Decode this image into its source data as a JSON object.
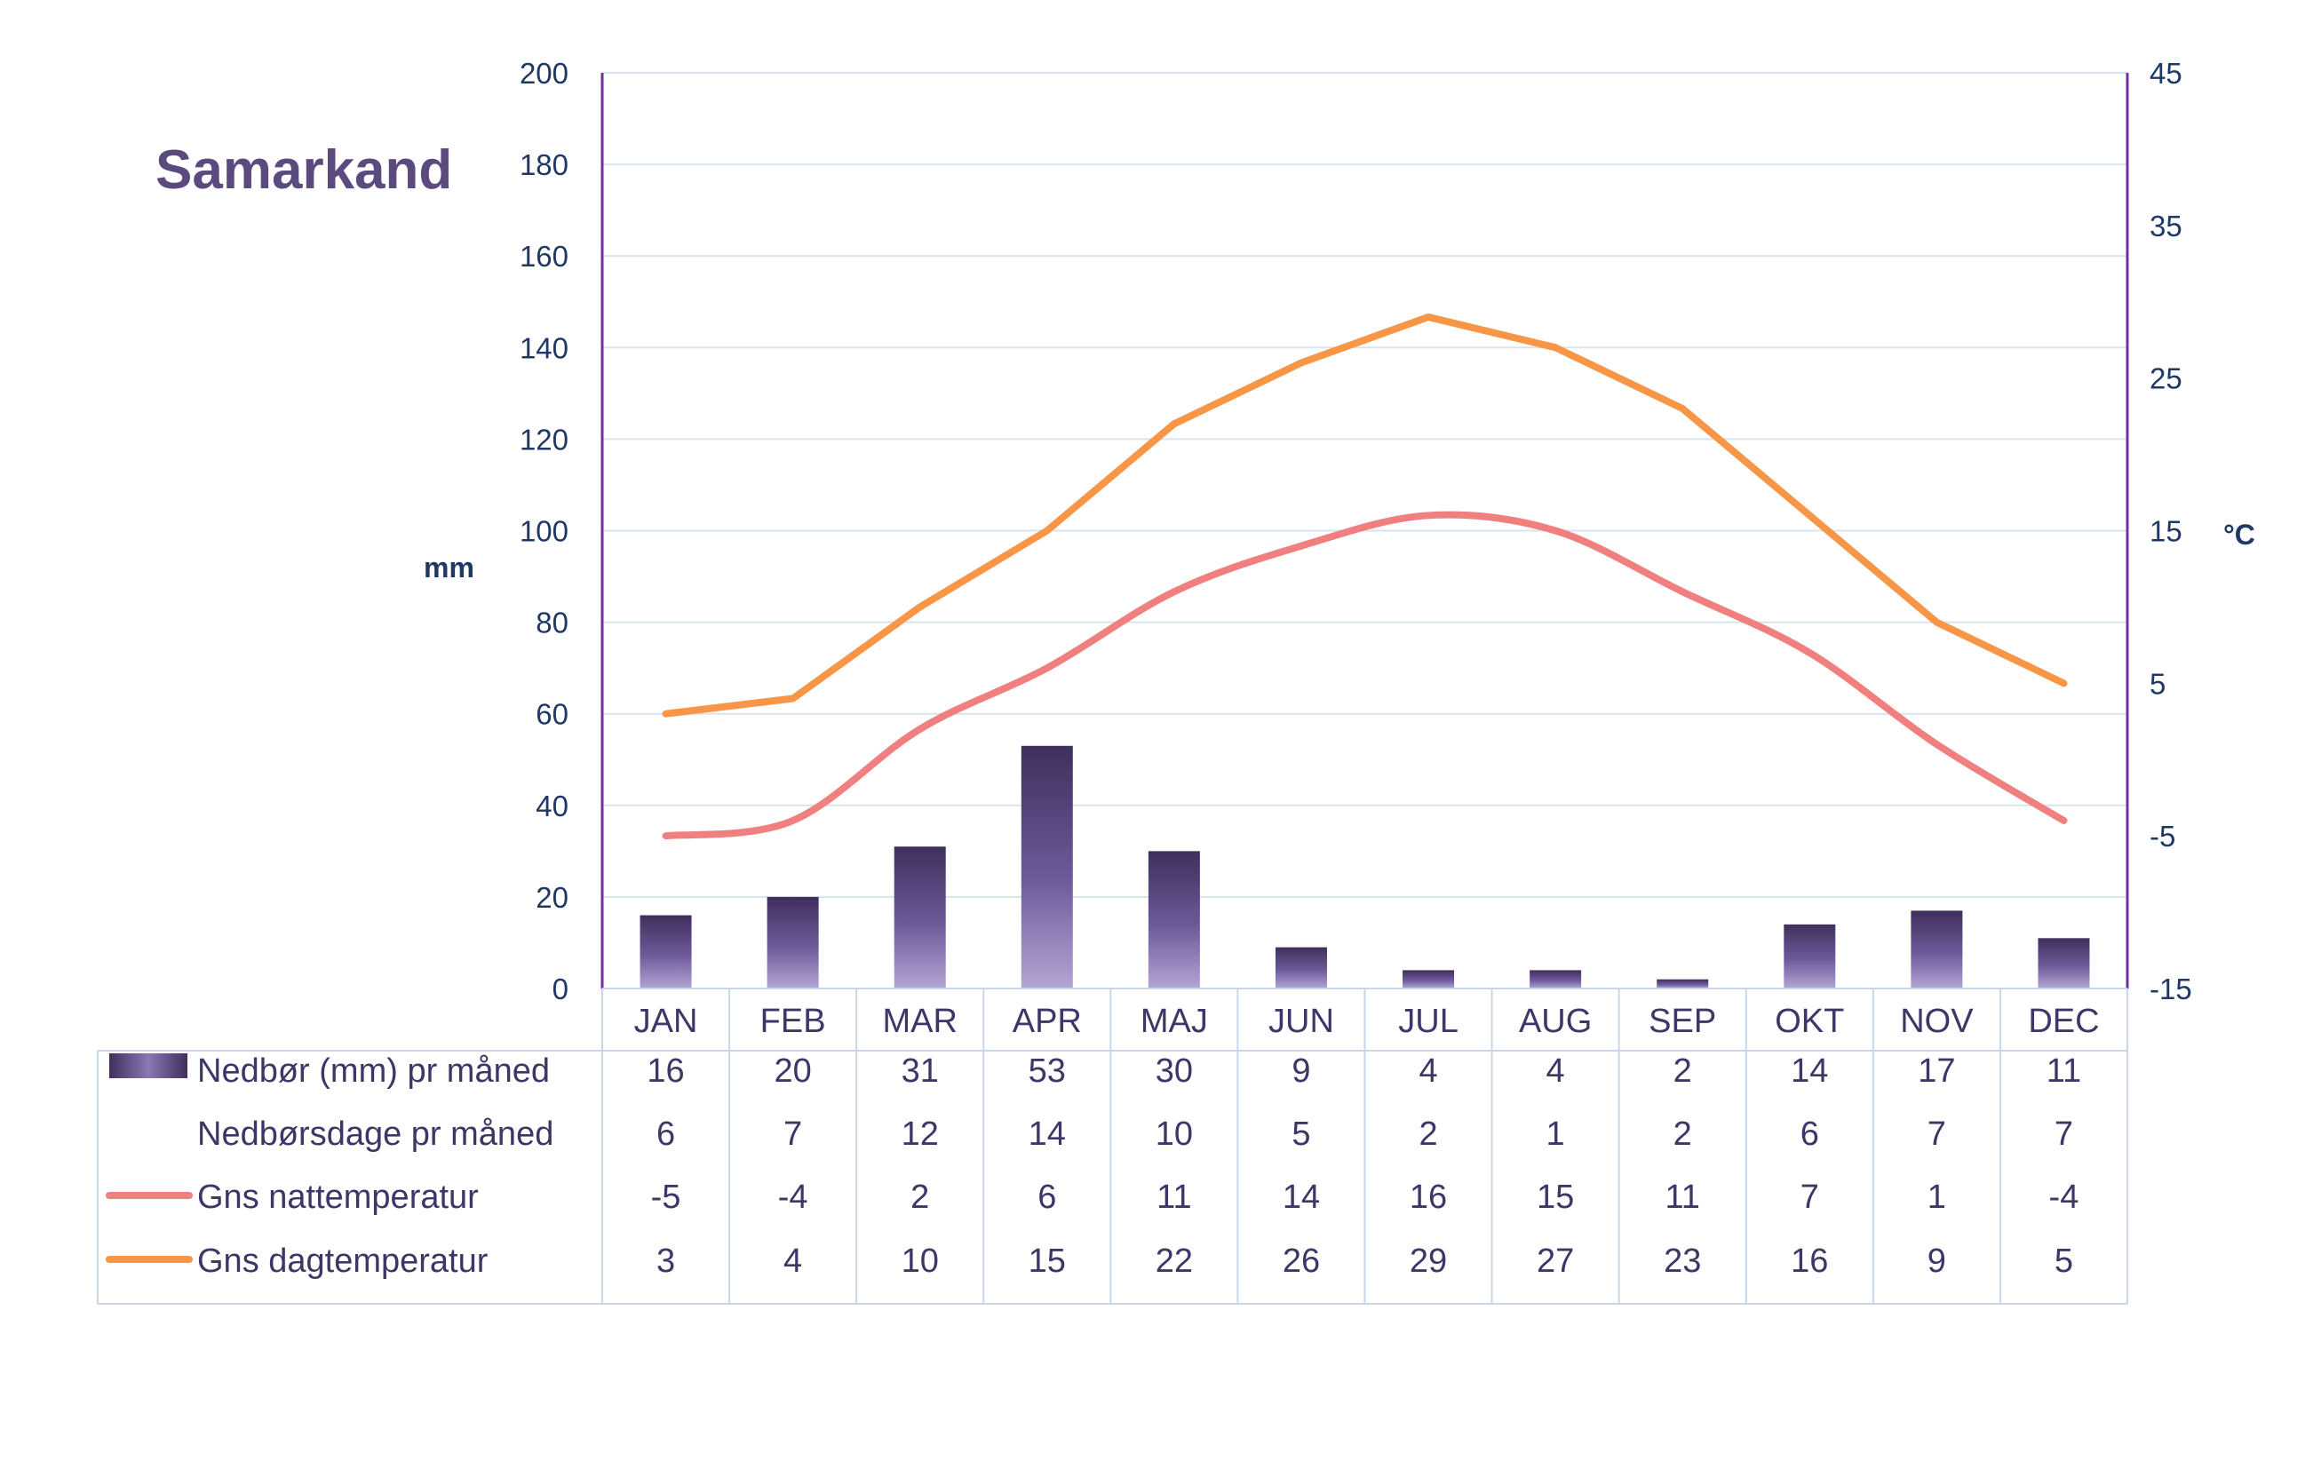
{
  "chart_data": {
    "type": "bar",
    "title": "Samarkand",
    "categories": [
      "JAN",
      "FEB",
      "MAR",
      "APR",
      "MAJ",
      "JUN",
      "JUL",
      "AUG",
      "SEP",
      "OKT",
      "NOV",
      "DEC"
    ],
    "y_left": {
      "label": "mm",
      "range": [
        0,
        200
      ],
      "ticks": [
        "0",
        "20",
        "40",
        "60",
        "80",
        "100",
        "120",
        "140",
        "160",
        "180",
        "200"
      ]
    },
    "y_right": {
      "label": "°C",
      "range": [
        -15,
        45
      ],
      "ticks": [
        "-15",
        "-5",
        "5",
        "15",
        "25",
        "35",
        "45"
      ]
    },
    "grid": true,
    "series": [
      {
        "name": "Nedbør (mm) pr måned",
        "type": "bar",
        "axis": "left",
        "color": "#5b4a7e",
        "values": [
          16,
          20,
          31,
          53,
          30,
          9,
          4,
          4,
          2,
          14,
          17,
          11
        ]
      },
      {
        "name": "Nedbørsdage pr måned",
        "type": "table",
        "values": [
          6,
          7,
          12,
          14,
          10,
          5,
          2,
          1,
          2,
          6,
          7,
          7
        ]
      },
      {
        "name": "Gns nattemperatur",
        "type": "line",
        "axis": "right",
        "color": "#f08080",
        "values": [
          -5,
          -4,
          2,
          6,
          11,
          14,
          16,
          15,
          11,
          7,
          1,
          -4
        ]
      },
      {
        "name": "Gns dagtemperatur",
        "type": "line",
        "axis": "right",
        "color": "#f79646",
        "values": [
          3,
          4,
          10,
          15,
          22,
          26,
          29,
          27,
          23,
          16,
          9,
          5
        ]
      }
    ]
  }
}
